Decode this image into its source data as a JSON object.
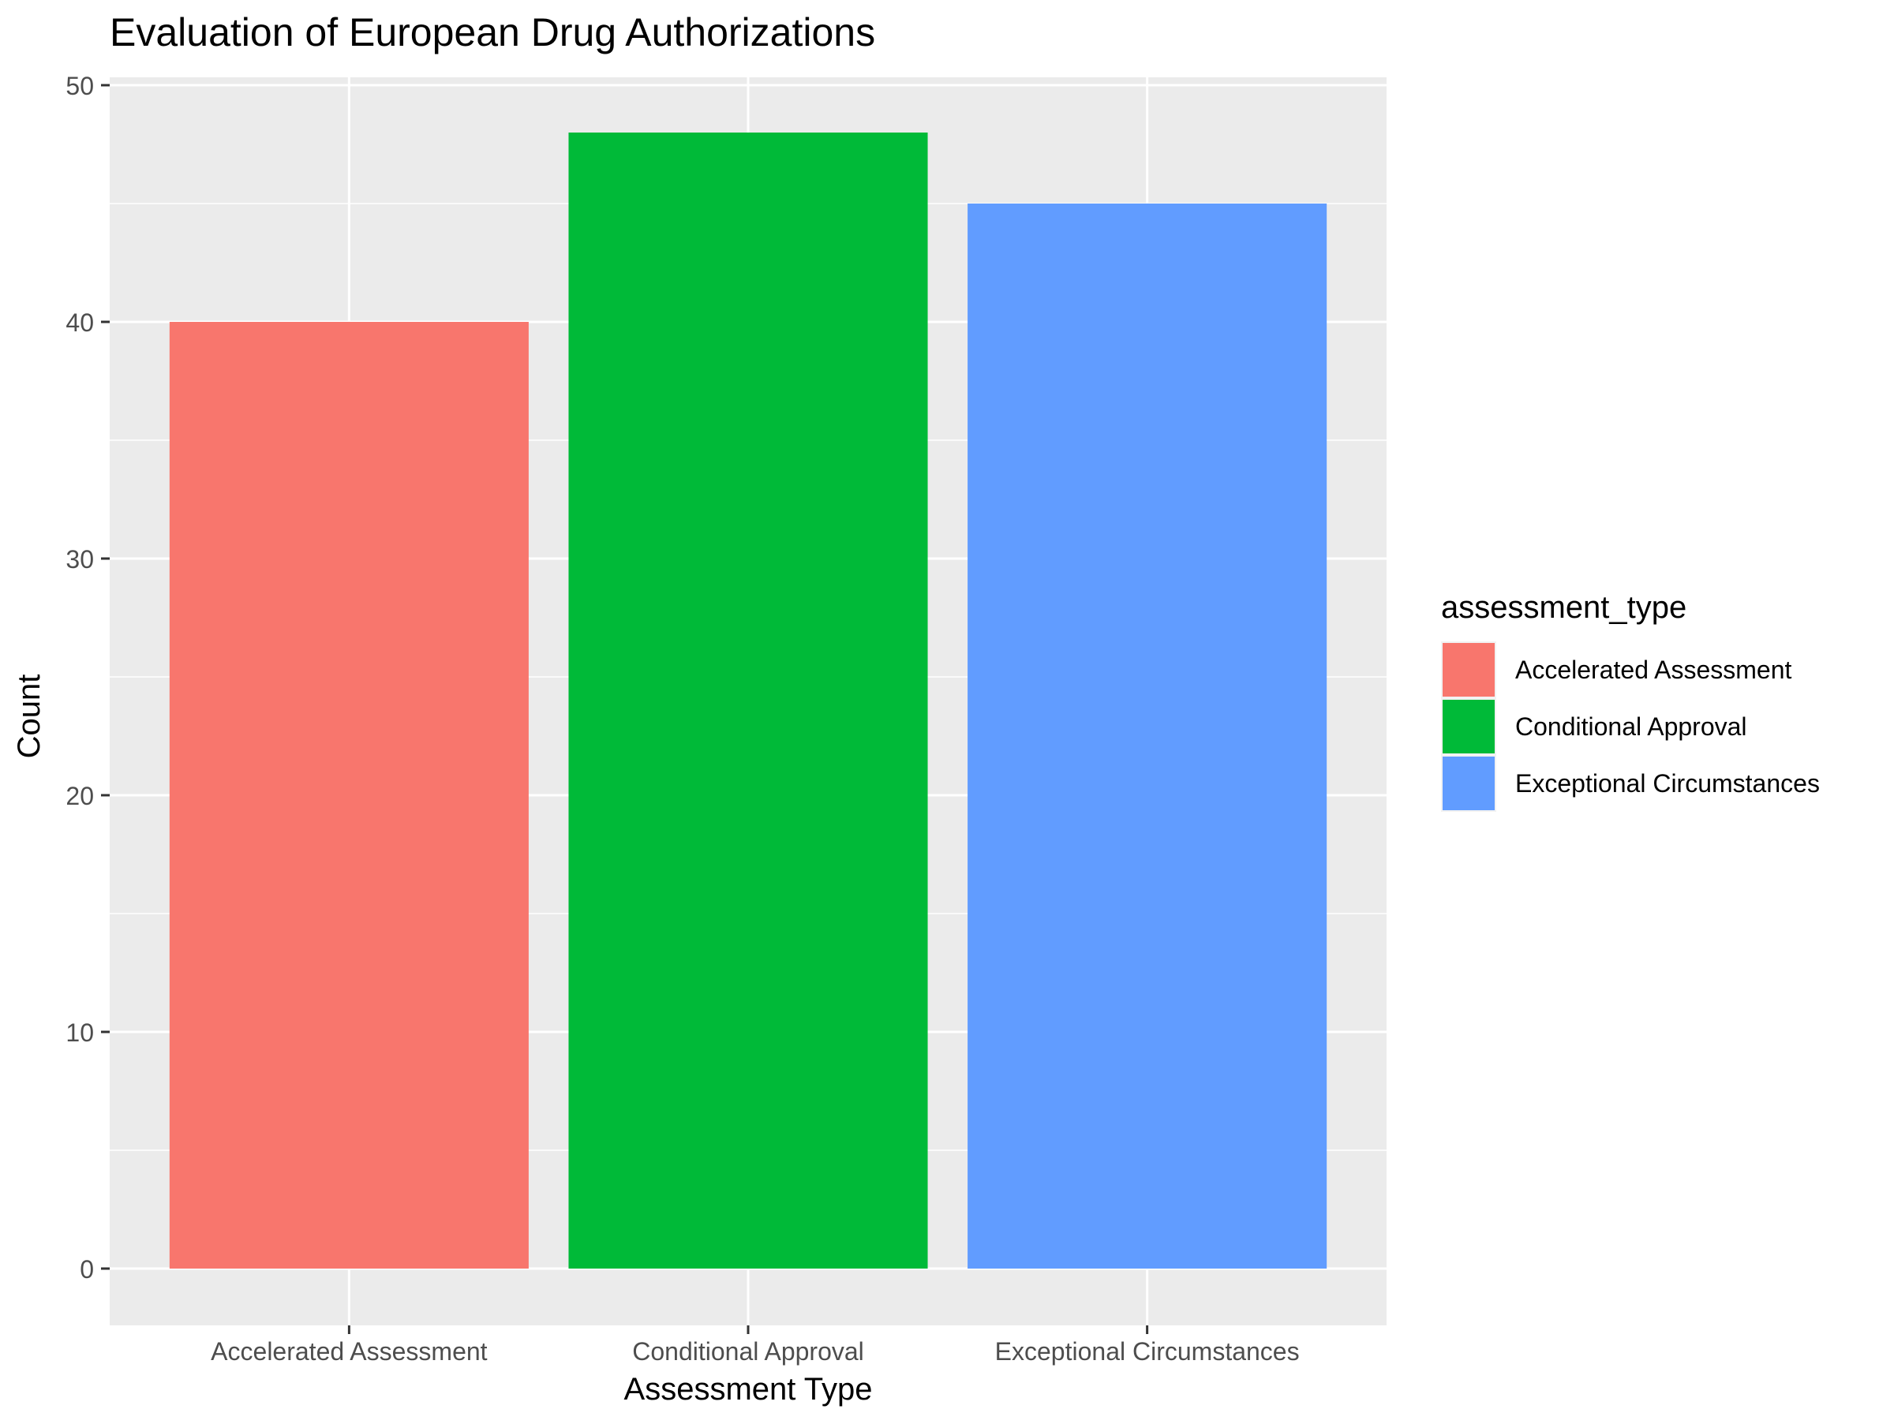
{
  "chart_data": {
    "type": "bar",
    "title": "Evaluation of European Drug Authorizations",
    "xlabel": "Assessment Type",
    "ylabel": "Count",
    "categories": [
      "Accelerated Assessment",
      "Conditional Approval",
      "Exceptional Circumstances"
    ],
    "values": [
      40,
      48,
      45
    ],
    "colors": [
      "#F8766D",
      "#00BA38",
      "#619CFF"
    ],
    "ylim": [
      0,
      50
    ],
    "yticks": [
      0,
      10,
      20,
      30,
      40,
      50
    ],
    "grid": true,
    "panel_background": "#EBEBEB",
    "legend": {
      "title": "assessment_type",
      "placement": "right",
      "entries": [
        "Accelerated Assessment",
        "Conditional Approval",
        "Exceptional Circumstances"
      ]
    }
  }
}
